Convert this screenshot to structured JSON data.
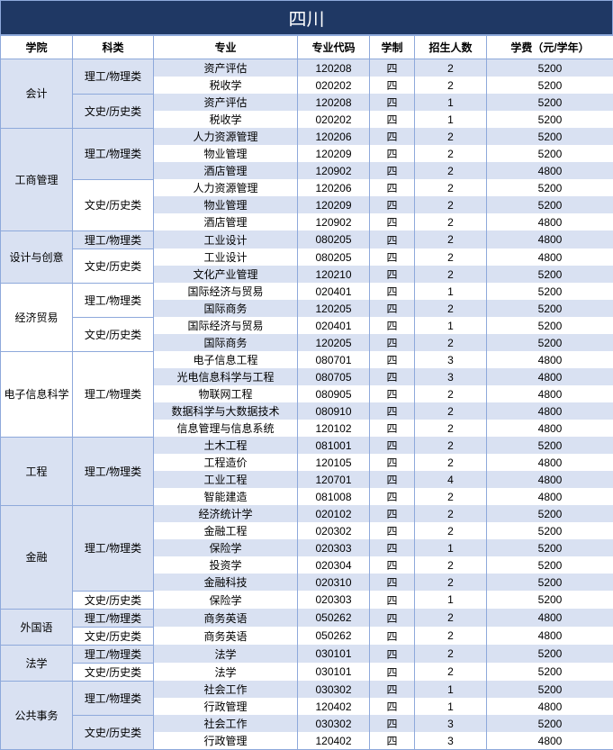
{
  "title": "四川",
  "headers": [
    "学院",
    "科类",
    "专业",
    "专业代码",
    "学制",
    "招生人数",
    "学费（元/学年）"
  ],
  "colors": {
    "title_bg": "#1f3864",
    "title_fg": "#ffffff",
    "border": "#8ea9db",
    "row_even": "#d9e1f2",
    "row_odd": "#ffffff"
  },
  "groups": [
    {
      "college": "会计",
      "cats": [
        {
          "cat": "理工/物理类",
          "rows": [
            {
              "major": "资产评估",
              "code": "120208",
              "dur": "四",
              "num": "2",
              "fee": "5200"
            },
            {
              "major": "税收学",
              "code": "020202",
              "dur": "四",
              "num": "2",
              "fee": "5200"
            }
          ]
        },
        {
          "cat": "文史/历史类",
          "rows": [
            {
              "major": "资产评估",
              "code": "120208",
              "dur": "四",
              "num": "1",
              "fee": "5200"
            },
            {
              "major": "税收学",
              "code": "020202",
              "dur": "四",
              "num": "1",
              "fee": "5200"
            }
          ]
        }
      ]
    },
    {
      "college": "工商管理",
      "cats": [
        {
          "cat": "理工/物理类",
          "rows": [
            {
              "major": "人力资源管理",
              "code": "120206",
              "dur": "四",
              "num": "2",
              "fee": "5200"
            },
            {
              "major": "物业管理",
              "code": "120209",
              "dur": "四",
              "num": "2",
              "fee": "5200"
            },
            {
              "major": "酒店管理",
              "code": "120902",
              "dur": "四",
              "num": "2",
              "fee": "4800"
            }
          ]
        },
        {
          "cat": "文史/历史类",
          "rows": [
            {
              "major": "人力资源管理",
              "code": "120206",
              "dur": "四",
              "num": "2",
              "fee": "5200"
            },
            {
              "major": "物业管理",
              "code": "120209",
              "dur": "四",
              "num": "2",
              "fee": "5200"
            },
            {
              "major": "酒店管理",
              "code": "120902",
              "dur": "四",
              "num": "2",
              "fee": "4800"
            }
          ]
        }
      ]
    },
    {
      "college": "设计与创意",
      "cats": [
        {
          "cat": "理工/物理类",
          "rows": [
            {
              "major": "工业设计",
              "code": "080205",
              "dur": "四",
              "num": "2",
              "fee": "4800"
            }
          ]
        },
        {
          "cat": "文史/历史类",
          "rows": [
            {
              "major": "工业设计",
              "code": "080205",
              "dur": "四",
              "num": "2",
              "fee": "4800"
            },
            {
              "major": "文化产业管理",
              "code": "120210",
              "dur": "四",
              "num": "2",
              "fee": "5200"
            }
          ]
        }
      ]
    },
    {
      "college": "经济贸易",
      "cats": [
        {
          "cat": "理工/物理类",
          "rows": [
            {
              "major": "国际经济与贸易",
              "code": "020401",
              "dur": "四",
              "num": "1",
              "fee": "5200"
            },
            {
              "major": "国际商务",
              "code": "120205",
              "dur": "四",
              "num": "2",
              "fee": "5200"
            }
          ]
        },
        {
          "cat": "文史/历史类",
          "rows": [
            {
              "major": "国际经济与贸易",
              "code": "020401",
              "dur": "四",
              "num": "1",
              "fee": "5200"
            },
            {
              "major": "国际商务",
              "code": "120205",
              "dur": "四",
              "num": "2",
              "fee": "5200"
            }
          ]
        }
      ]
    },
    {
      "college": "电子信息科学",
      "cats": [
        {
          "cat": "理工/物理类",
          "rows": [
            {
              "major": "电子信息工程",
              "code": "080701",
              "dur": "四",
              "num": "3",
              "fee": "4800"
            },
            {
              "major": "光电信息科学与工程",
              "code": "080705",
              "dur": "四",
              "num": "3",
              "fee": "4800"
            },
            {
              "major": "物联网工程",
              "code": "080905",
              "dur": "四",
              "num": "2",
              "fee": "4800"
            },
            {
              "major": "数据科学与大数据技术",
              "code": "080910",
              "dur": "四",
              "num": "2",
              "fee": "4800"
            },
            {
              "major": "信息管理与信息系统",
              "code": "120102",
              "dur": "四",
              "num": "2",
              "fee": "4800"
            }
          ]
        }
      ]
    },
    {
      "college": "工程",
      "cats": [
        {
          "cat": "理工/物理类",
          "rows": [
            {
              "major": "土木工程",
              "code": "081001",
              "dur": "四",
              "num": "2",
              "fee": "5200"
            },
            {
              "major": "工程造价",
              "code": "120105",
              "dur": "四",
              "num": "2",
              "fee": "4800"
            },
            {
              "major": "工业工程",
              "code": "120701",
              "dur": "四",
              "num": "4",
              "fee": "4800"
            },
            {
              "major": "智能建造",
              "code": "081008",
              "dur": "四",
              "num": "2",
              "fee": "4800"
            }
          ]
        }
      ]
    },
    {
      "college": "金融",
      "cats": [
        {
          "cat": "理工/物理类",
          "rows": [
            {
              "major": "经济统计学",
              "code": "020102",
              "dur": "四",
              "num": "2",
              "fee": "5200"
            },
            {
              "major": "金融工程",
              "code": "020302",
              "dur": "四",
              "num": "2",
              "fee": "5200"
            },
            {
              "major": "保险学",
              "code": "020303",
              "dur": "四",
              "num": "1",
              "fee": "5200"
            },
            {
              "major": "投资学",
              "code": "020304",
              "dur": "四",
              "num": "2",
              "fee": "5200"
            },
            {
              "major": "金融科技",
              "code": "020310",
              "dur": "四",
              "num": "2",
              "fee": "5200"
            }
          ]
        },
        {
          "cat": "文史/历史类",
          "rows": [
            {
              "major": "保险学",
              "code": "020303",
              "dur": "四",
              "num": "1",
              "fee": "5200"
            }
          ]
        }
      ]
    },
    {
      "college": "外国语",
      "cats": [
        {
          "cat": "理工/物理类",
          "rows": [
            {
              "major": "商务英语",
              "code": "050262",
              "dur": "四",
              "num": "2",
              "fee": "4800"
            }
          ]
        },
        {
          "cat": "文史/历史类",
          "rows": [
            {
              "major": "商务英语",
              "code": "050262",
              "dur": "四",
              "num": "2",
              "fee": "4800"
            }
          ]
        }
      ]
    },
    {
      "college": "法学",
      "cats": [
        {
          "cat": "理工/物理类",
          "rows": [
            {
              "major": "法学",
              "code": "030101",
              "dur": "四",
              "num": "2",
              "fee": "5200"
            }
          ]
        },
        {
          "cat": "文史/历史类",
          "rows": [
            {
              "major": "法学",
              "code": "030101",
              "dur": "四",
              "num": "2",
              "fee": "5200"
            }
          ]
        }
      ]
    },
    {
      "college": "公共事务",
      "cats": [
        {
          "cat": "理工/物理类",
          "rows": [
            {
              "major": "社会工作",
              "code": "030302",
              "dur": "四",
              "num": "1",
              "fee": "5200"
            },
            {
              "major": "行政管理",
              "code": "120402",
              "dur": "四",
              "num": "1",
              "fee": "4800"
            }
          ]
        },
        {
          "cat": "文史/历史类",
          "rows": [
            {
              "major": "社会工作",
              "code": "030302",
              "dur": "四",
              "num": "3",
              "fee": "5200"
            },
            {
              "major": "行政管理",
              "code": "120402",
              "dur": "四",
              "num": "3",
              "fee": "4800"
            }
          ]
        }
      ]
    }
  ]
}
